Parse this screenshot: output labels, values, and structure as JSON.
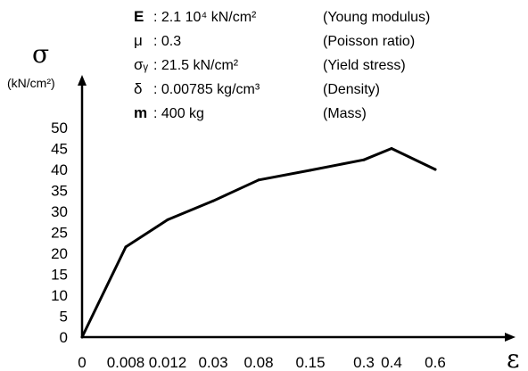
{
  "chart_data": {
    "type": "line",
    "y_label": {
      "symbol": "σ",
      "unit": "(kN/cm²)"
    },
    "x_label": {
      "symbol": "ε"
    },
    "x_ticks": [
      "0",
      "0.008",
      "0.012",
      "0.03",
      "0.08",
      "0.15",
      "0.3",
      "0.4",
      "0.6"
    ],
    "y_ticks": [
      0,
      5,
      10,
      15,
      20,
      25,
      30,
      35,
      40,
      45,
      50
    ],
    "ylim": [
      0,
      50
    ],
    "grid": false,
    "series": [
      {
        "x": [
          "0",
          "0.008",
          "0.012",
          "0.03",
          "0.08",
          "0.15",
          "0.3",
          "0.4",
          "0.6"
        ],
        "y": [
          0,
          21.5,
          28,
          32.5,
          37.5,
          39.8,
          42.3,
          45,
          40
        ]
      }
    ],
    "legend": [
      {
        "symbol": "E",
        "value": ": 2.1 10⁴ kN/cm²",
        "description": "(Young modulus)"
      },
      {
        "symbol": "μ",
        "value": ": 0.3",
        "description": "(Poisson ratio)"
      },
      {
        "symbol": "σᵧ",
        "value": ": 21.5 kN/cm²",
        "description": "(Yield stress)"
      },
      {
        "symbol": "δ",
        "value": ": 0.00785 kg/cm³",
        "description": "(Density)"
      },
      {
        "symbol": "m",
        "value": ": 400 kg",
        "description": "(Mass)"
      }
    ]
  }
}
